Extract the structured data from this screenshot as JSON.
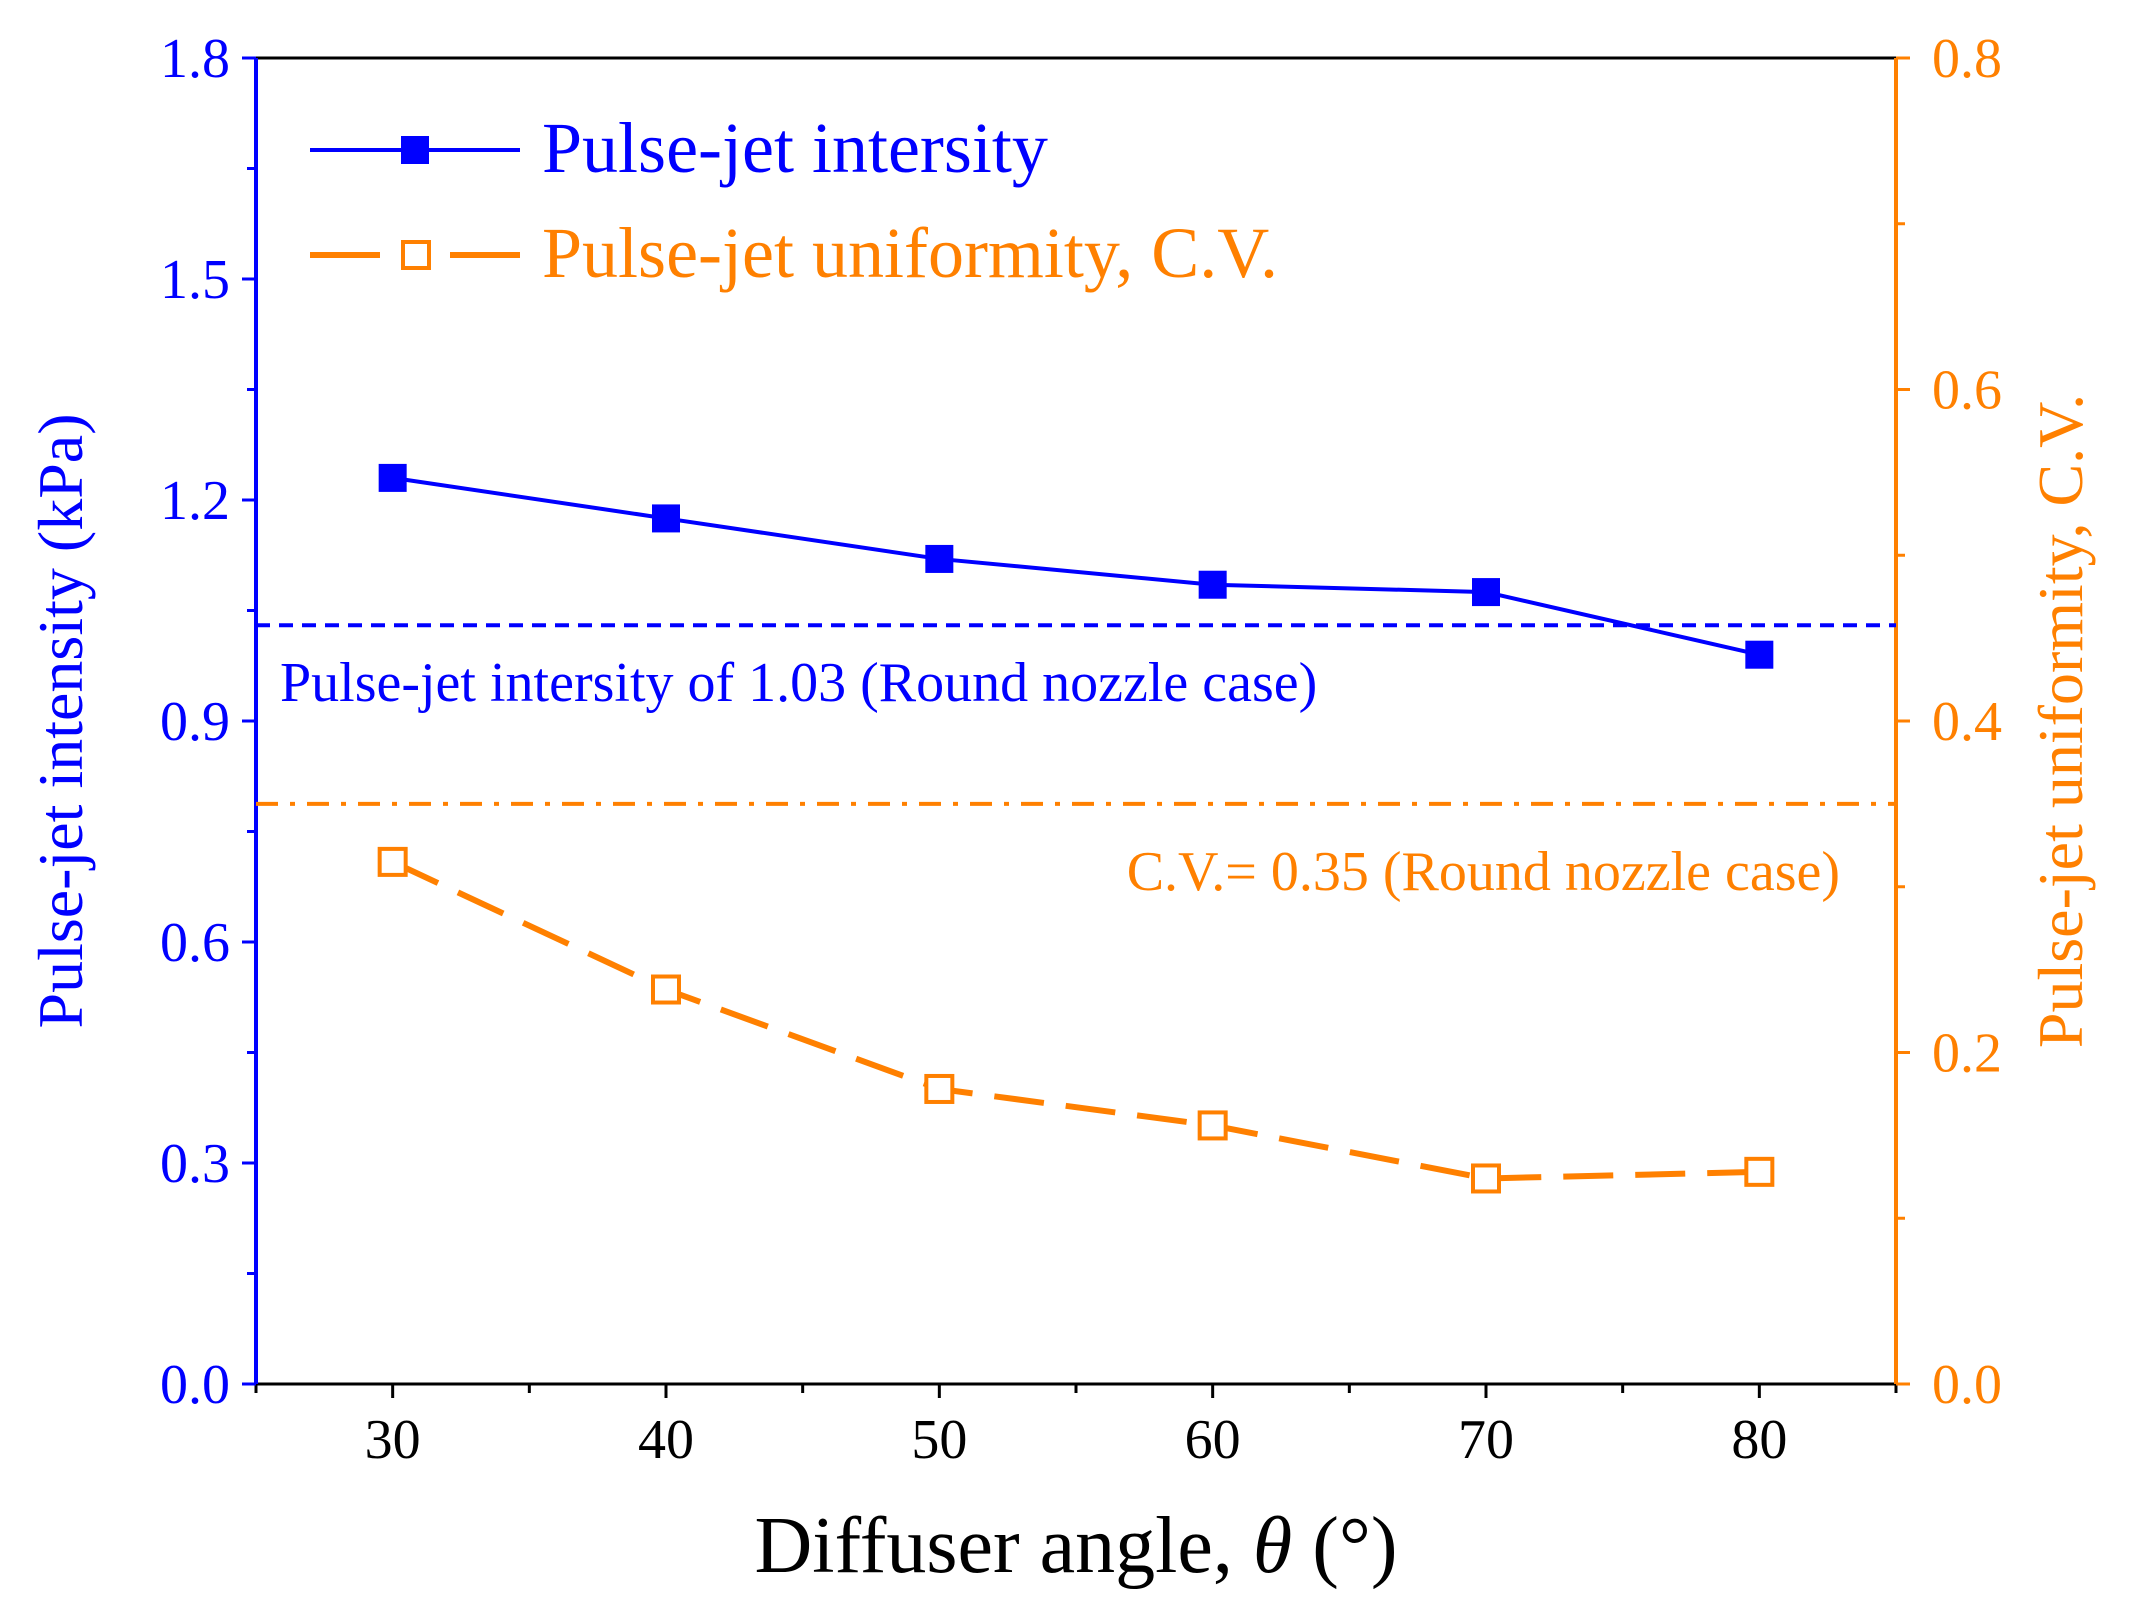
{
  "chart_data": {
    "type": "line",
    "x": [
      30,
      40,
      50,
      60,
      70,
      80
    ],
    "xlabel_main": "Diffuser angle, ",
    "xlabel_symbol": "θ",
    "xlabel_unit": " (°)",
    "xlim": [
      25,
      85
    ],
    "xticks": [
      30,
      40,
      50,
      60,
      70,
      80
    ],
    "xtick_labels": [
      "30",
      "40",
      "50",
      "60",
      "70",
      "80"
    ],
    "left_axis": {
      "label": "Pulse-jet intensity (kPa)",
      "ylim": [
        0,
        1.8
      ],
      "ticks": [
        0.0,
        0.3,
        0.6,
        0.9,
        1.2,
        1.5,
        1.8
      ],
      "tick_labels": [
        "0.0",
        "0.3",
        "0.6",
        "0.9",
        "1.2",
        "1.5",
        "1.8"
      ],
      "color": "#0000ff"
    },
    "right_axis": {
      "label": "Pulse-jet uniformity, C.V.",
      "ylim": [
        0,
        0.8
      ],
      "ticks": [
        0.0,
        0.2,
        0.4,
        0.6,
        0.8
      ],
      "tick_labels": [
        "0.0",
        "0.2",
        "0.4",
        "0.6",
        "0.8"
      ],
      "color": "#ff8000"
    },
    "series": [
      {
        "name": "Pulse-jet intersity",
        "axis": "left",
        "values": [
          1.23,
          1.175,
          1.12,
          1.085,
          1.075,
          0.99
        ],
        "color": "#0000ff",
        "marker": "filled-square",
        "line": "solid"
      },
      {
        "name": "Pulse-jet uniformity, C.V.",
        "axis": "right",
        "values": [
          0.315,
          0.238,
          0.178,
          0.156,
          0.124,
          0.128
        ],
        "color": "#ff8000",
        "marker": "open-square",
        "line": "dashed"
      }
    ],
    "reference_lines": [
      {
        "axis": "left",
        "value": 1.03,
        "style": "short-dash",
        "color": "#0000ff",
        "label": "Pulse-jet intersity of 1.03 (Round nozzle case)"
      },
      {
        "axis": "right",
        "value": 0.35,
        "style": "dash-dot",
        "color": "#ff8000",
        "label": "C.V.= 0.35 (Round nozzle case)"
      }
    ],
    "legend_position": "top-left"
  }
}
